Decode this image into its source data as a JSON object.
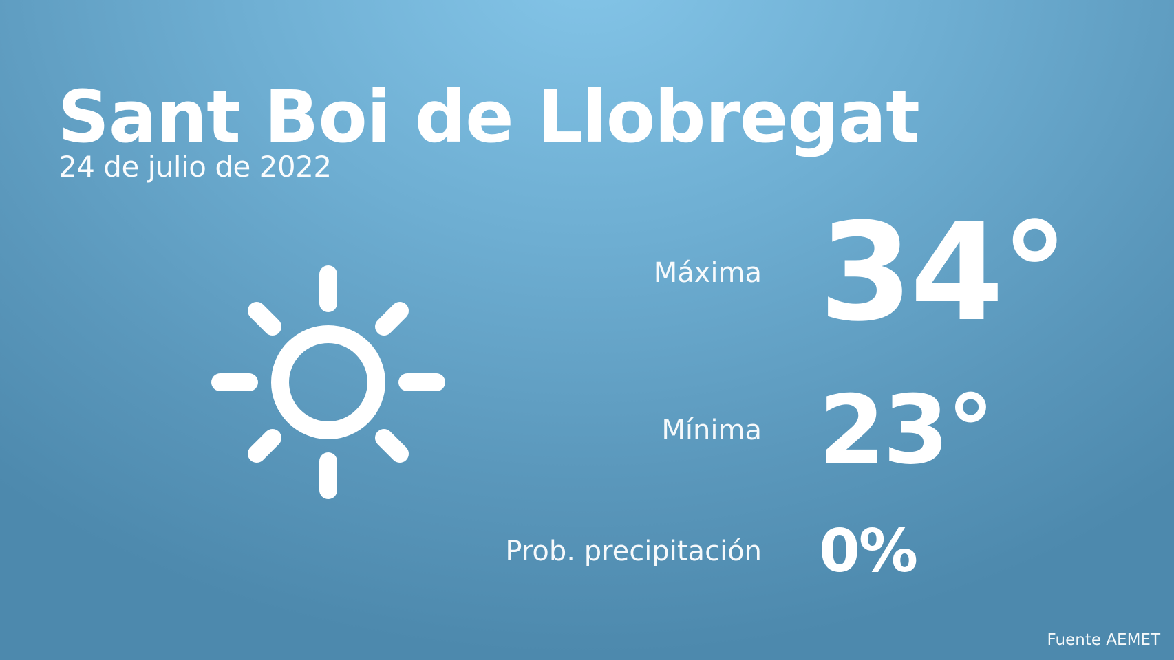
{
  "location": "Sant Boi de Llobregat",
  "date": "24 de julio de 2022",
  "weather_icon": "sun-icon",
  "max": {
    "label": "Máxima",
    "value": "34°"
  },
  "min": {
    "label": "Mínima",
    "value": "23°"
  },
  "precip": {
    "label": "Prob. precipitación",
    "value": "0%"
  },
  "source": "Fuente AEMET",
  "colors": {
    "background_top": "#84c5e8",
    "background_bottom": "#4d89ad",
    "text": "#ffffff"
  }
}
